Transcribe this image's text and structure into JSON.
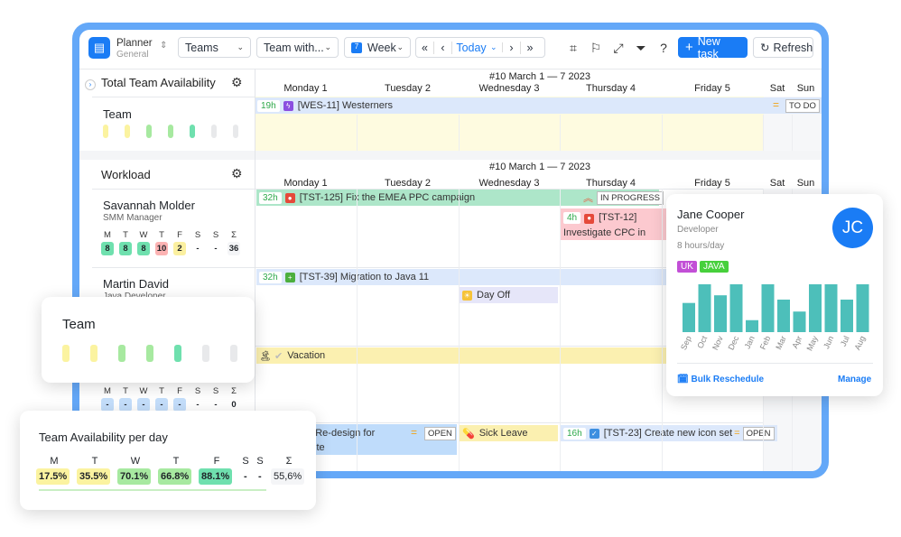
{
  "toolbar": {
    "app_title": "Planner",
    "app_subtitle": "General",
    "teams_select": "Teams",
    "team_select": "Team with...",
    "view_select": "Week",
    "today": "Today",
    "new_task": "New task",
    "refresh": "Refresh"
  },
  "week_label": "#10 March 1 — 7 2023",
  "days": [
    "Monday 1",
    "Tuesday 2",
    "Wednesday 3",
    "Thursday 4",
    "Friday 5",
    "Sat",
    "Sun"
  ],
  "availability_section": {
    "title": "Total Team Availability",
    "team": "Team",
    "task": {
      "hours": "19h",
      "label": "[WES-11] Westerners",
      "status": "TO DO"
    }
  },
  "workload": {
    "title": "Workload",
    "day_letters": [
      "M",
      "T",
      "W",
      "T",
      "F",
      "S",
      "S",
      "Σ"
    ],
    "people": [
      {
        "name": "Savannah Molder",
        "role": "SMM Manager",
        "values": [
          "8",
          "8",
          "8",
          "10",
          "2",
          "-",
          "-",
          "36"
        ]
      },
      {
        "name": "Martin David",
        "role": "Java Developer"
      },
      {
        "values": [
          "-",
          "-",
          "-",
          "-",
          "-",
          "-",
          "-",
          "0"
        ]
      }
    ],
    "tasks": [
      {
        "hours": "32h",
        "label": "[TST-125] Fix the EMEA PPC campaign",
        "status": "IN PROGRESS"
      },
      {
        "hours": "4h",
        "label": "[TST-12] Investigate CPC in February"
      },
      {
        "hours": "32h",
        "label": "[TST-39] Migration to Java 11"
      },
      {
        "label": "Day Off"
      },
      {
        "label": "Vacation"
      },
      {
        "label": "[TST-28] Re-design for the  website",
        "status": "OPEN"
      },
      {
        "label": "Sick Leave"
      },
      {
        "hours": "16h",
        "label": "[TST-23] Create new icon set",
        "status": "OPEN"
      }
    ]
  },
  "team_card": {
    "title": "Team"
  },
  "availability_card": {
    "title": "Team Availability per day",
    "letters": [
      "M",
      "T",
      "W",
      "T",
      "F",
      "S",
      "S",
      "Σ"
    ],
    "values": [
      "17.5%",
      "35.5%",
      "70.1%",
      "66.8%",
      "88.1%",
      "-",
      "-",
      "55,6%"
    ]
  },
  "profile": {
    "name": "Jane Cooper",
    "role": "Developer",
    "hours": "8 hours/day",
    "initials": "JC",
    "tags": [
      "UK",
      "JAVA"
    ],
    "bulk": "Bulk Reschedule",
    "manage": "Manage",
    "chart_data": {
      "type": "bar",
      "categories": [
        "Sep",
        "Oct",
        "Nov",
        "Dec",
        "Jan",
        "Feb",
        "Mar",
        "Apr",
        "May",
        "Jun",
        "Jul",
        "Aug"
      ],
      "values": [
        61,
        100,
        77,
        100,
        25,
        100,
        68,
        43,
        100,
        100,
        68,
        100
      ],
      "color": "#4dbfba"
    }
  },
  "colors": {
    "accent": "#1a7cf5",
    "frame": "#64a8f8"
  }
}
